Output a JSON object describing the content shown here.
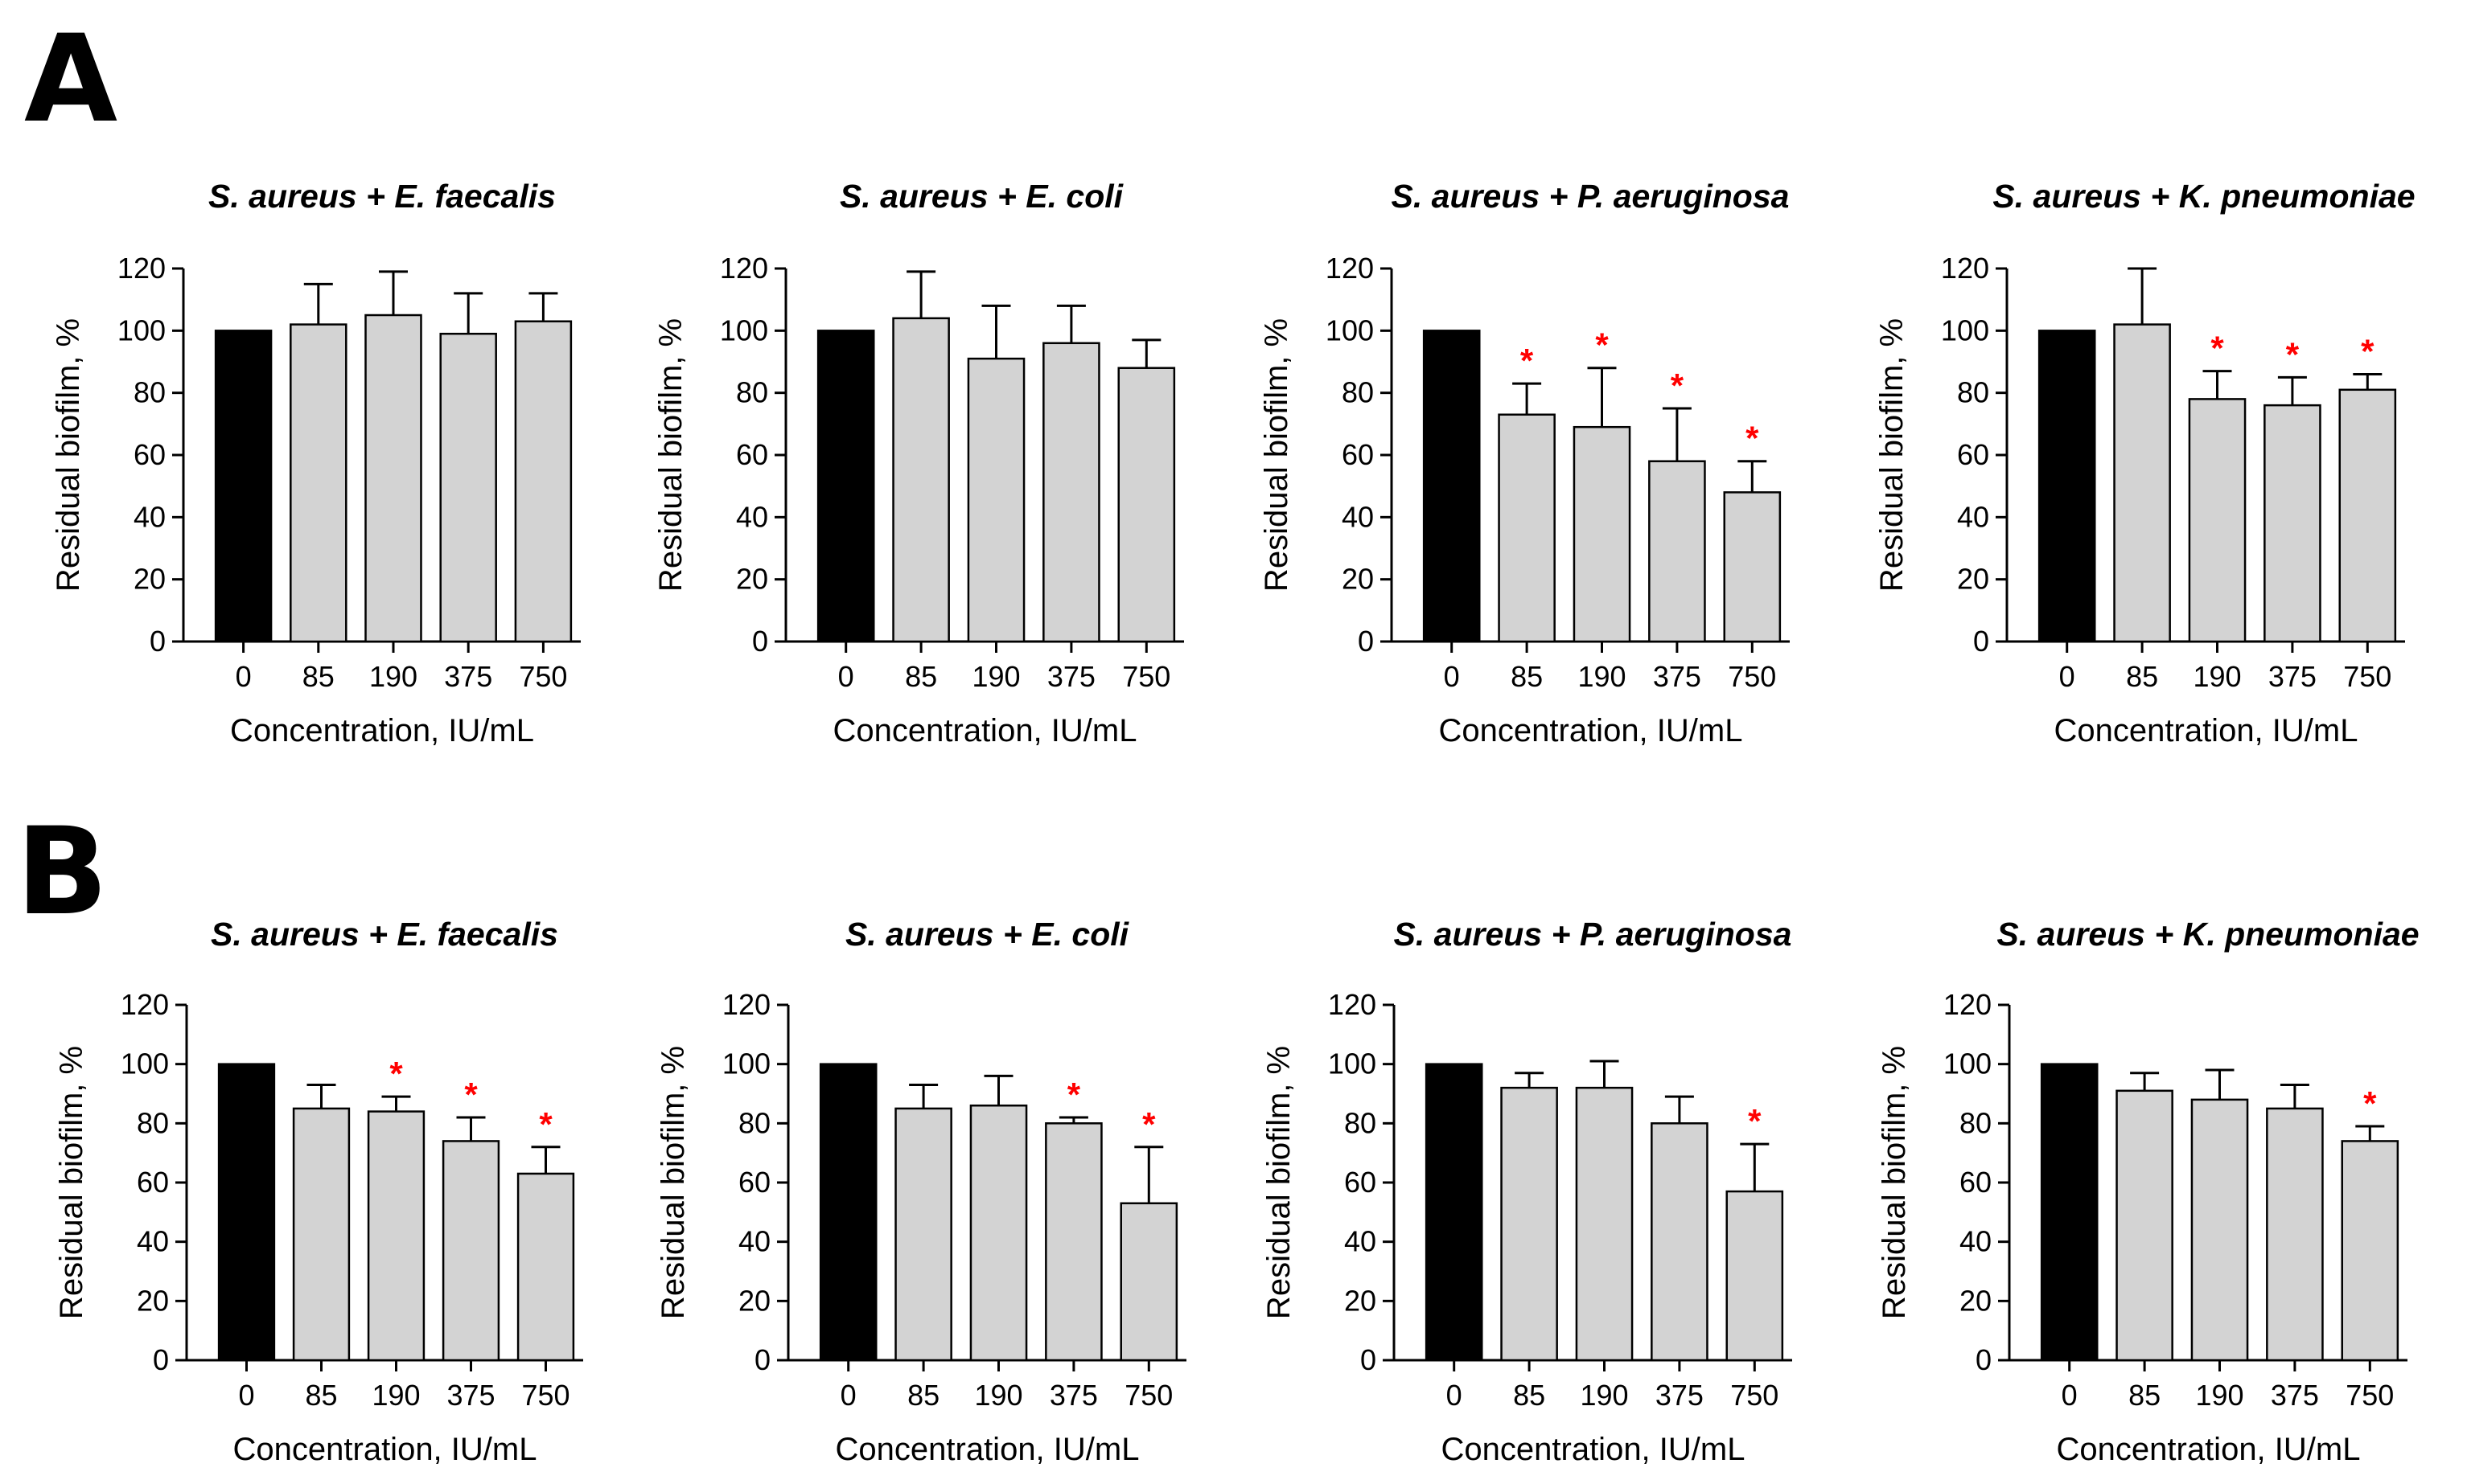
{
  "figure": {
    "panels": [
      {
        "letter": "A"
      },
      {
        "letter": "B"
      }
    ]
  },
  "chart_data": [
    {
      "panel": "A",
      "type": "bar",
      "title": "S. aureus + E. faecalis",
      "xlabel": "Concentration, IU/mL",
      "ylabel": "Residual biofilm, %",
      "categories": [
        "0",
        "85",
        "190",
        "375",
        "750"
      ],
      "values": [
        100,
        102,
        105,
        99,
        103
      ],
      "errors": [
        0,
        13,
        14,
        13,
        9
      ],
      "significant": [
        false,
        false,
        false,
        false,
        false
      ],
      "sig_symbol": "*",
      "bar_colors": [
        "#000000",
        "#d3d3d3",
        "#d3d3d3",
        "#d3d3d3",
        "#d3d3d3"
      ],
      "ylim": [
        0,
        120
      ],
      "yticks": [
        "0",
        "20",
        "40",
        "60",
        "80",
        "100",
        "120"
      ]
    },
    {
      "panel": "A",
      "type": "bar",
      "title": "S. aureus + E. coli",
      "xlabel": "Concentration, IU/mL",
      "ylabel": "Residual biofilm, %",
      "categories": [
        "0",
        "85",
        "190",
        "375",
        "750"
      ],
      "values": [
        100,
        104,
        91,
        96,
        88
      ],
      "errors": [
        0,
        15,
        17,
        12,
        9
      ],
      "significant": [
        false,
        false,
        false,
        false,
        false
      ],
      "sig_symbol": "*",
      "bar_colors": [
        "#000000",
        "#d3d3d3",
        "#d3d3d3",
        "#d3d3d3",
        "#d3d3d3"
      ],
      "ylim": [
        0,
        120
      ],
      "yticks": [
        "0",
        "20",
        "40",
        "60",
        "80",
        "100",
        "120"
      ]
    },
    {
      "panel": "A",
      "type": "bar",
      "title": "S. aureus + P. aeruginosa",
      "xlabel": "Concentration, IU/mL",
      "ylabel": "Residual biofilm, %",
      "categories": [
        "0",
        "85",
        "190",
        "375",
        "750"
      ],
      "values": [
        100,
        73,
        69,
        58,
        48
      ],
      "errors": [
        0,
        10,
        19,
        17,
        10
      ],
      "significant": [
        false,
        true,
        true,
        true,
        true
      ],
      "sig_symbol": "*",
      "bar_colors": [
        "#000000",
        "#d3d3d3",
        "#d3d3d3",
        "#d3d3d3",
        "#d3d3d3"
      ],
      "ylim": [
        0,
        120
      ],
      "yticks": [
        "0",
        "20",
        "40",
        "60",
        "80",
        "100",
        "120"
      ]
    },
    {
      "panel": "A",
      "type": "bar",
      "title": "S. aureus + K. pneumoniae",
      "xlabel": "Concentration, IU/mL",
      "ylabel": "Residual biofilm, %",
      "categories": [
        "0",
        "85",
        "190",
        "375",
        "750"
      ],
      "values": [
        100,
        102,
        78,
        76,
        81
      ],
      "errors": [
        0,
        18,
        9,
        9,
        5
      ],
      "significant": [
        false,
        false,
        true,
        true,
        true
      ],
      "sig_symbol": "*",
      "bar_colors": [
        "#000000",
        "#d3d3d3",
        "#d3d3d3",
        "#d3d3d3",
        "#d3d3d3"
      ],
      "ylim": [
        0,
        120
      ],
      "yticks": [
        "0",
        "20",
        "40",
        "60",
        "80",
        "100",
        "120"
      ]
    },
    {
      "panel": "B",
      "type": "bar",
      "title": "S. aureus + E. faecalis",
      "xlabel": "Concentration, IU/mL",
      "ylabel": "Residual biofilm, %",
      "categories": [
        "0",
        "85",
        "190",
        "375",
        "750"
      ],
      "values": [
        100,
        85,
        84,
        74,
        63
      ],
      "errors": [
        0,
        8,
        5,
        8,
        9
      ],
      "significant": [
        false,
        false,
        true,
        true,
        true
      ],
      "sig_symbol": "*",
      "bar_colors": [
        "#000000",
        "#d3d3d3",
        "#d3d3d3",
        "#d3d3d3",
        "#d3d3d3"
      ],
      "ylim": [
        0,
        120
      ],
      "yticks": [
        "0",
        "20",
        "40",
        "60",
        "80",
        "100",
        "120"
      ]
    },
    {
      "panel": "B",
      "type": "bar",
      "title": "S. aureus + E. coli",
      "xlabel": "Concentration, IU/mL",
      "ylabel": "Residual biofilm, %",
      "categories": [
        "0",
        "85",
        "190",
        "375",
        "750"
      ],
      "values": [
        100,
        85,
        86,
        80,
        53
      ],
      "errors": [
        0,
        8,
        10,
        2,
        19
      ],
      "significant": [
        false,
        false,
        false,
        true,
        true
      ],
      "sig_symbol": "*",
      "bar_colors": [
        "#000000",
        "#d3d3d3",
        "#d3d3d3",
        "#d3d3d3",
        "#d3d3d3"
      ],
      "ylim": [
        0,
        120
      ],
      "yticks": [
        "0",
        "20",
        "40",
        "60",
        "80",
        "100",
        "120"
      ]
    },
    {
      "panel": "B",
      "type": "bar",
      "title": "S. aureus + P. aeruginosa",
      "xlabel": "Concentration, IU/mL",
      "ylabel": "Residual biofilm, %",
      "categories": [
        "0",
        "85",
        "190",
        "375",
        "750"
      ],
      "values": [
        100,
        92,
        92,
        80,
        57
      ],
      "errors": [
        0,
        5,
        9,
        9,
        16
      ],
      "significant": [
        false,
        false,
        false,
        false,
        true
      ],
      "sig_symbol": "*",
      "bar_colors": [
        "#000000",
        "#d3d3d3",
        "#d3d3d3",
        "#d3d3d3",
        "#d3d3d3"
      ],
      "ylim": [
        0,
        120
      ],
      "yticks": [
        "0",
        "20",
        "40",
        "60",
        "80",
        "100",
        "120"
      ]
    },
    {
      "panel": "B",
      "type": "bar",
      "title": "S. aureus + K. pneumoniae",
      "xlabel": "Concentration, IU/mL",
      "ylabel": "Residual biofilm, %",
      "categories": [
        "0",
        "85",
        "190",
        "375",
        "750"
      ],
      "values": [
        100,
        91,
        88,
        85,
        74
      ],
      "errors": [
        0,
        6,
        10,
        8,
        5
      ],
      "significant": [
        false,
        false,
        false,
        false,
        true
      ],
      "sig_symbol": "*",
      "bar_colors": [
        "#000000",
        "#d3d3d3",
        "#d3d3d3",
        "#d3d3d3",
        "#d3d3d3"
      ],
      "ylim": [
        0,
        120
      ],
      "yticks": [
        "0",
        "20",
        "40",
        "60",
        "80",
        "100",
        "120"
      ]
    }
  ],
  "colors": {
    "control_bar": "#000000",
    "treated_bar": "#d3d3d3",
    "significance": "#ff0000",
    "axis": "#000000"
  }
}
